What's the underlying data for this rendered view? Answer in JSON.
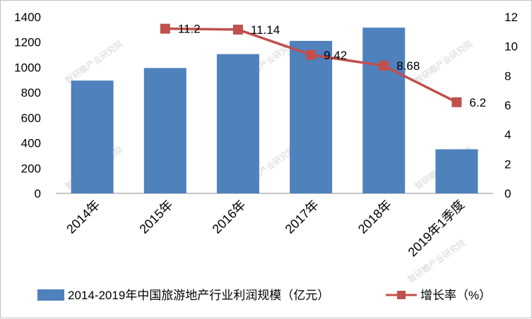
{
  "chart_data": {
    "type": "bar",
    "categories": [
      "2014年",
      "2015年",
      "2016年",
      "2017年",
      "2018年",
      "2019年1季度"
    ],
    "series": [
      {
        "name": "2014-2019年中国旅游地产行业利润规模（亿元）",
        "type": "bar",
        "axis": "left",
        "color": "#4f81bd",
        "values": [
          895,
          995,
          1105,
          1210,
          1315,
          350
        ]
      },
      {
        "name": "增长率（%）",
        "type": "line",
        "axis": "right",
        "color": "#c0504d",
        "values": [
          null,
          11.2,
          11.14,
          9.42,
          8.68,
          6.2
        ],
        "labels": [
          "",
          "11.2",
          "11.14",
          "9.42",
          "8.68",
          "6.2"
        ]
      }
    ],
    "y_left": {
      "range": [
        0,
        1400
      ],
      "ticks": [
        "0",
        "200",
        "400",
        "600",
        "800",
        "1000",
        "1200",
        "1400"
      ]
    },
    "y_right": {
      "range": [
        0,
        12
      ],
      "ticks": [
        "0",
        "2",
        "4",
        "6",
        "8",
        "10",
        "12"
      ]
    },
    "grid": false,
    "legend": "bottom"
  },
  "watermark": "智研瞻产业研究院"
}
